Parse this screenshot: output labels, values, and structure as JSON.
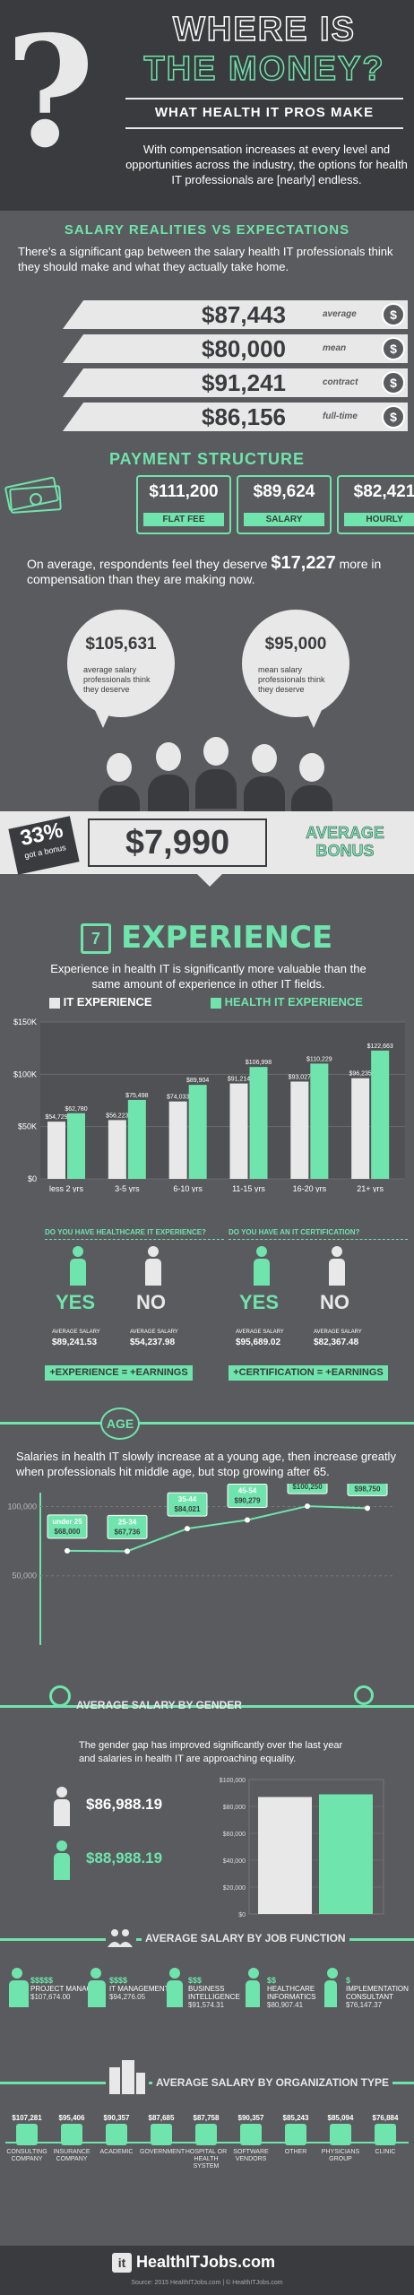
{
  "header": {
    "title_line1": "WHERE IS",
    "title_line2": "THE MONEY?",
    "subtitle": "WHAT HEALTH IT PROS MAKE",
    "intro": "With compensation increases at every level and opportunities across the industry, the options for health IT professionals are [nearly] endless."
  },
  "expectations": {
    "heading": "SALARY REALITIES VS EXPECTATIONS",
    "text": "There's a significant gap between the salary health IT professionals think they should make and what they actually take home.",
    "bars": [
      {
        "value": "$87,443",
        "label": "average"
      },
      {
        "value": "$80,000",
        "label": "mean"
      },
      {
        "value": "$91,241",
        "label": "contract"
      },
      {
        "value": "$86,156",
        "label": "full-time"
      }
    ],
    "coin_symbol": "$"
  },
  "payment": {
    "heading": "PAYMENT STRUCTURE",
    "items": [
      {
        "value": "$111,200",
        "label": "FLAT FEE"
      },
      {
        "value": "$89,624",
        "label": "SALARY"
      },
      {
        "value": "$82,421",
        "label": "HOURLY"
      }
    ],
    "deserve_pre": "On average, respondents feel they deserve",
    "deserve_amount": "$17,227",
    "deserve_post": "more in compensation than they are making now.",
    "bubbles": [
      {
        "value": "$105,631",
        "desc": "average salary professionals think they deserve"
      },
      {
        "value": "$95,000",
        "desc": "mean salary professionals think they deserve"
      }
    ]
  },
  "bonus": {
    "percent": "33%",
    "percent_label": "got a bonus",
    "amount": "$7,990",
    "label_line1": "AVERAGE",
    "label_line2": "BONUS"
  },
  "experience": {
    "heading": "EXPERIENCE",
    "text": "Experience in health IT is significantly more valuable than the same amount of experience in other IT fields.",
    "legend_it": "IT EXPERIENCE",
    "legend_hit": "HEALTH IT EXPERIENCE",
    "q1": "DO YOU HAVE HEALTHCARE IT EXPERIENCE?",
    "q2": "DO YOU HAVE AN IT CERTIFICATION?",
    "yes": "YES",
    "no": "NO",
    "avg_salary": "AVERAGE SALARY",
    "exp_yes": "$89,241.53",
    "exp_no": "$54,237.98",
    "cert_yes": "$95,689.02",
    "cert_no": "$82,367.48",
    "pill1": "+EXPERIENCE = +EARNINGS",
    "pill2": "+CERTIFICATION = +EARNINGS"
  },
  "chart_data": [
    {
      "type": "bar",
      "categories": [
        "less 2 yrs",
        "3-5 yrs",
        "6-10 yrs",
        "11-15 yrs",
        "16-20 yrs",
        "21+ yrs"
      ],
      "series": [
        {
          "name": "IT EXPERIENCE",
          "values": [
            54729,
            56223,
            74033,
            91214,
            93027,
            96235
          ]
        },
        {
          "name": "HEALTH IT EXPERIENCE",
          "values": [
            62780,
            75498,
            89904,
            106998,
            110229,
            122663
          ]
        }
      ],
      "value_labels": {
        "IT EXPERIENCE": [
          "$54,729",
          "$56,223",
          "$74,033",
          "$91,214",
          "$93,027",
          "$96,235"
        ],
        "HEALTH IT EXPERIENCE": [
          "$62,780",
          "$75,498",
          "$89,904",
          "$106,998",
          "$110,229",
          "$122,663"
        ]
      },
      "yticks": [
        "$0",
        "$50K",
        "$100K",
        "$150K"
      ],
      "ylim": [
        0,
        150000
      ],
      "grid": true,
      "legend": "top"
    },
    {
      "type": "line",
      "title": "AGE",
      "categories": [
        "under 25",
        "25-34",
        "35-44",
        "45-54",
        "55-64",
        "65+"
      ],
      "values": [
        68000,
        67736,
        84021,
        90279,
        100250,
        98750
      ],
      "value_labels": [
        "$68,000",
        "$67,736",
        "$84,021",
        "$90,279",
        "$100,250",
        "$98,750"
      ],
      "yticks": [
        "50,000",
        "100,000"
      ],
      "ylim": [
        0,
        110000
      ]
    },
    {
      "type": "bar",
      "title": "AVERAGE SALARY BY GENDER",
      "categories": [
        "Female",
        "Male"
      ],
      "values": [
        86988.19,
        88988.19
      ],
      "value_labels": [
        "$86,988.19",
        "$88,988.19"
      ],
      "yticks": [
        "$0",
        "$20,000",
        "$40,000",
        "$60,000",
        "$80,000",
        "$100,000"
      ],
      "ylim": [
        0,
        100000
      ]
    }
  ],
  "age": {
    "heading": "AGE",
    "text": "Salaries in health IT slowly increase at a young age, then increase greatly when professionals hit middle age, but stop growing after 65."
  },
  "gender": {
    "heading": "AVERAGE SALARY BY GENDER",
    "text": "The gender gap has improved significantly over the last year and salaries in health IT are approaching equality.",
    "female": "$86,988.19",
    "male": "$88,988.19"
  },
  "job_function": {
    "heading": "AVERAGE SALARY BY JOB FUNCTION",
    "items": [
      {
        "dollars": "$$$$$",
        "name": "PROJECT MANAGER",
        "value": "$107,674.00"
      },
      {
        "dollars": "$$$$",
        "name": "IT MANAGEMENT",
        "value": "$94,276.05"
      },
      {
        "dollars": "$$$",
        "name": "BUSINESS INTELLIGENCE",
        "value": "$91,574.31"
      },
      {
        "dollars": "$$",
        "name": "HEALTHCARE INFORMATICS",
        "value": "$80,907.41"
      },
      {
        "dollars": "$",
        "name": "IMPLEMENTATION CONSULTANT",
        "value": "$76,147.37"
      }
    ]
  },
  "org_type": {
    "heading": "AVERAGE SALARY BY ORGANIZATION TYPE",
    "items": [
      {
        "value": "$107,281",
        "name": "CONSULTING COMPANY"
      },
      {
        "value": "$95,406",
        "name": "INSURANCE COMPANY"
      },
      {
        "value": "$90,357",
        "name": "ACADEMIC"
      },
      {
        "value": "$87,685",
        "name": "GOVERNMENT"
      },
      {
        "value": "$87,758",
        "name": "HOSPITAL OR HEALTH SYSTEM"
      },
      {
        "value": "$90,357",
        "name": "SOFTWARE VENDORS"
      },
      {
        "value": "$85,243",
        "name": "OTHER"
      },
      {
        "value": "$85,094",
        "name": "PHYSICIANS GROUP"
      },
      {
        "value": "$76,884",
        "name": "CLINIC"
      }
    ]
  },
  "footer": {
    "logo": "HealthITJobs.com",
    "source": "Source: 2015 HealthITJobs.com   |   © HealthITJobs.com"
  },
  "colors": {
    "mint": "#6fe4ac",
    "light": "#e8e8e8",
    "dark": "#3a3b3e",
    "gray": "#5a5b5e"
  }
}
